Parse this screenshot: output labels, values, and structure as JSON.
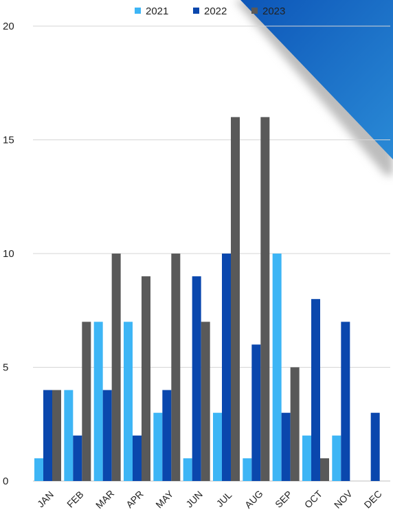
{
  "chart_data": {
    "type": "bar",
    "categories": [
      "JAN",
      "FEB",
      "MAR",
      "APR",
      "MAY",
      "JUN",
      "JUL",
      "AUG",
      "SEP",
      "OCT",
      "NOV",
      "DEC"
    ],
    "series": [
      {
        "name": "2021",
        "color": "#3db5f5",
        "values": [
          1,
          4,
          7,
          7,
          3,
          1,
          3,
          1,
          10,
          2,
          2,
          0
        ]
      },
      {
        "name": "2022",
        "color": "#0a47ad",
        "values": [
          4,
          2,
          4,
          2,
          4,
          9,
          10,
          6,
          3,
          8,
          7,
          3
        ]
      },
      {
        "name": "2023",
        "color": "#595959",
        "values": [
          4,
          7,
          10,
          9,
          10,
          7,
          16,
          16,
          5,
          1,
          0,
          0
        ]
      }
    ],
    "ylim": [
      0,
      20
    ],
    "yticks": [
      0,
      5,
      10,
      15,
      20
    ],
    "grid": true,
    "legend_position": "top-center",
    "title": "",
    "xlabel": "",
    "ylabel": ""
  },
  "decoration": {
    "corner_colors": [
      "#0d56b8",
      "#2a8ad6"
    ]
  }
}
